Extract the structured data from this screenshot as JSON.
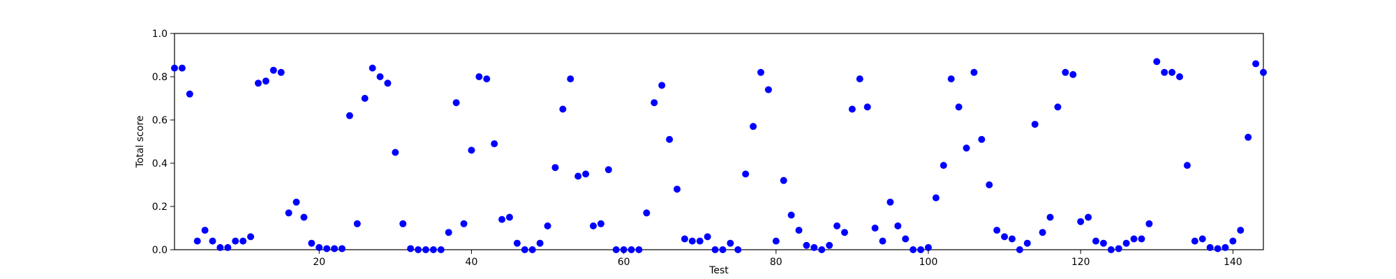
{
  "chart_data": {
    "type": "scatter",
    "xlabel": "Test",
    "ylabel": "Total score",
    "xlim": [
      1,
      144
    ],
    "ylim": [
      0,
      1.0
    ],
    "xticks": [
      20,
      40,
      60,
      80,
      100,
      120,
      140
    ],
    "xtick_labels": [
      "20",
      "40",
      "60",
      "80",
      "100",
      "120",
      "140"
    ],
    "yticks": [
      0,
      0.2,
      0.4,
      0.6,
      0.8,
      1.0
    ],
    "ytick_labels": [
      "0.0",
      "0.2",
      "0.4",
      "0.6",
      "0.8",
      "1.0"
    ],
    "marker_color": "#0000ff",
    "grid": false,
    "points": [
      {
        "x": 1,
        "y": 0.84
      },
      {
        "x": 2,
        "y": 0.84
      },
      {
        "x": 3,
        "y": 0.72
      },
      {
        "x": 4,
        "y": 0.04
      },
      {
        "x": 5,
        "y": 0.09
      },
      {
        "x": 6,
        "y": 0.04
      },
      {
        "x": 7,
        "y": 0.01
      },
      {
        "x": 8,
        "y": 0.01
      },
      {
        "x": 9,
        "y": 0.04
      },
      {
        "x": 10,
        "y": 0.04
      },
      {
        "x": 11,
        "y": 0.06
      },
      {
        "x": 12,
        "y": 0.77
      },
      {
        "x": 13,
        "y": 0.78
      },
      {
        "x": 14,
        "y": 0.83
      },
      {
        "x": 15,
        "y": 0.82
      },
      {
        "x": 16,
        "y": 0.17
      },
      {
        "x": 17,
        "y": 0.22
      },
      {
        "x": 18,
        "y": 0.15
      },
      {
        "x": 19,
        "y": 0.03
      },
      {
        "x": 20,
        "y": 0.01
      },
      {
        "x": 21,
        "y": 0.005
      },
      {
        "x": 22,
        "y": 0.005
      },
      {
        "x": 23,
        "y": 0.005
      },
      {
        "x": 24,
        "y": 0.62
      },
      {
        "x": 25,
        "y": 0.12
      },
      {
        "x": 26,
        "y": 0.7
      },
      {
        "x": 27,
        "y": 0.84
      },
      {
        "x": 28,
        "y": 0.8
      },
      {
        "x": 29,
        "y": 0.77
      },
      {
        "x": 30,
        "y": 0.45
      },
      {
        "x": 31,
        "y": 0.12
      },
      {
        "x": 32,
        "y": 0.005
      },
      {
        "x": 33,
        "y": 0.0
      },
      {
        "x": 34,
        "y": 0.0
      },
      {
        "x": 35,
        "y": 0.0
      },
      {
        "x": 36,
        "y": 0.0
      },
      {
        "x": 37,
        "y": 0.08
      },
      {
        "x": 38,
        "y": 0.68
      },
      {
        "x": 39,
        "y": 0.12
      },
      {
        "x": 40,
        "y": 0.46
      },
      {
        "x": 41,
        "y": 0.8
      },
      {
        "x": 42,
        "y": 0.79
      },
      {
        "x": 43,
        "y": 0.49
      },
      {
        "x": 44,
        "y": 0.14
      },
      {
        "x": 45,
        "y": 0.15
      },
      {
        "x": 46,
        "y": 0.03
      },
      {
        "x": 47,
        "y": 0.0
      },
      {
        "x": 48,
        "y": 0.0
      },
      {
        "x": 49,
        "y": 0.03
      },
      {
        "x": 50,
        "y": 0.11
      },
      {
        "x": 51,
        "y": 0.38
      },
      {
        "x": 52,
        "y": 0.65
      },
      {
        "x": 53,
        "y": 0.79
      },
      {
        "x": 54,
        "y": 0.34
      },
      {
        "x": 55,
        "y": 0.35
      },
      {
        "x": 56,
        "y": 0.11
      },
      {
        "x": 57,
        "y": 0.12
      },
      {
        "x": 58,
        "y": 0.37
      },
      {
        "x": 59,
        "y": 0.0
      },
      {
        "x": 60,
        "y": 0.0
      },
      {
        "x": 61,
        "y": 0.0
      },
      {
        "x": 62,
        "y": 0.0
      },
      {
        "x": 63,
        "y": 0.17
      },
      {
        "x": 64,
        "y": 0.68
      },
      {
        "x": 65,
        "y": 0.76
      },
      {
        "x": 66,
        "y": 0.51
      },
      {
        "x": 67,
        "y": 0.28
      },
      {
        "x": 68,
        "y": 0.05
      },
      {
        "x": 69,
        "y": 0.04
      },
      {
        "x": 70,
        "y": 0.04
      },
      {
        "x": 71,
        "y": 0.06
      },
      {
        "x": 72,
        "y": 0.0
      },
      {
        "x": 73,
        "y": 0.0
      },
      {
        "x": 74,
        "y": 0.03
      },
      {
        "x": 75,
        "y": 0.0
      },
      {
        "x": 76,
        "y": 0.35
      },
      {
        "x": 77,
        "y": 0.57
      },
      {
        "x": 78,
        "y": 0.82
      },
      {
        "x": 79,
        "y": 0.74
      },
      {
        "x": 80,
        "y": 0.04
      },
      {
        "x": 81,
        "y": 0.32
      },
      {
        "x": 82,
        "y": 0.16
      },
      {
        "x": 83,
        "y": 0.09
      },
      {
        "x": 84,
        "y": 0.02
      },
      {
        "x": 85,
        "y": 0.01
      },
      {
        "x": 86,
        "y": 0.0
      },
      {
        "x": 87,
        "y": 0.02
      },
      {
        "x": 88,
        "y": 0.11
      },
      {
        "x": 89,
        "y": 0.08
      },
      {
        "x": 90,
        "y": 0.65
      },
      {
        "x": 91,
        "y": 0.79
      },
      {
        "x": 92,
        "y": 0.66
      },
      {
        "x": 93,
        "y": 0.1
      },
      {
        "x": 94,
        "y": 0.04
      },
      {
        "x": 95,
        "y": 0.22
      },
      {
        "x": 96,
        "y": 0.11
      },
      {
        "x": 97,
        "y": 0.05
      },
      {
        "x": 98,
        "y": 0.0
      },
      {
        "x": 99,
        "y": 0.0
      },
      {
        "x": 100,
        "y": 0.01
      },
      {
        "x": 101,
        "y": 0.24
      },
      {
        "x": 102,
        "y": 0.39
      },
      {
        "x": 103,
        "y": 0.79
      },
      {
        "x": 104,
        "y": 0.66
      },
      {
        "x": 105,
        "y": 0.47
      },
      {
        "x": 106,
        "y": 0.82
      },
      {
        "x": 107,
        "y": 0.51
      },
      {
        "x": 108,
        "y": 0.3
      },
      {
        "x": 109,
        "y": 0.09
      },
      {
        "x": 110,
        "y": 0.06
      },
      {
        "x": 111,
        "y": 0.05
      },
      {
        "x": 112,
        "y": 0.0
      },
      {
        "x": 113,
        "y": 0.03
      },
      {
        "x": 114,
        "y": 0.58
      },
      {
        "x": 115,
        "y": 0.08
      },
      {
        "x": 116,
        "y": 0.15
      },
      {
        "x": 117,
        "y": 0.66
      },
      {
        "x": 118,
        "y": 0.82
      },
      {
        "x": 119,
        "y": 0.81
      },
      {
        "x": 120,
        "y": 0.13
      },
      {
        "x": 121,
        "y": 0.15
      },
      {
        "x": 122,
        "y": 0.04
      },
      {
        "x": 123,
        "y": 0.03
      },
      {
        "x": 124,
        "y": 0.0
      },
      {
        "x": 125,
        "y": 0.005
      },
      {
        "x": 126,
        "y": 0.03
      },
      {
        "x": 127,
        "y": 0.05
      },
      {
        "x": 128,
        "y": 0.05
      },
      {
        "x": 129,
        "y": 0.12
      },
      {
        "x": 130,
        "y": 0.87
      },
      {
        "x": 131,
        "y": 0.82
      },
      {
        "x": 132,
        "y": 0.82
      },
      {
        "x": 133,
        "y": 0.8
      },
      {
        "x": 134,
        "y": 0.39
      },
      {
        "x": 135,
        "y": 0.04
      },
      {
        "x": 136,
        "y": 0.05
      },
      {
        "x": 137,
        "y": 0.01
      },
      {
        "x": 138,
        "y": 0.005
      },
      {
        "x": 139,
        "y": 0.01
      },
      {
        "x": 140,
        "y": 0.04
      },
      {
        "x": 141,
        "y": 0.09
      },
      {
        "x": 142,
        "y": 0.52
      },
      {
        "x": 143,
        "y": 0.86
      },
      {
        "x": 144,
        "y": 0.82
      }
    ]
  }
}
